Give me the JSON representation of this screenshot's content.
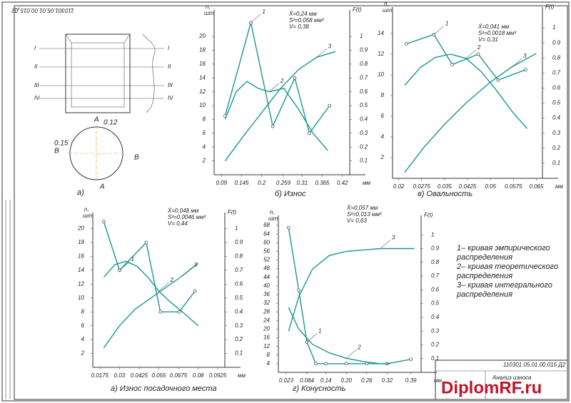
{
  "chart_data": [
    {
      "type": "line",
      "title": "б) Износ",
      "ylabel": "n,",
      "ylabel_unit": "шт",
      "y2label": "F(t)",
      "xlabel": "мм",
      "annotations": [
        "X̄=0,24 мм",
        "S²=0,058 мм²",
        "V= 0,38"
      ],
      "xlim": [
        0.07,
        0.44
      ],
      "xticks": [
        0.09,
        0.145,
        0.2,
        0.259,
        0.31,
        0.365,
        0.42
      ],
      "ylim": [
        0,
        23
      ],
      "yticks": [
        2,
        4,
        6,
        8,
        10,
        12,
        14,
        16,
        18,
        20
      ],
      "y2lim": [
        0,
        1.15
      ],
      "y2ticks": [
        0.1,
        0.2,
        0.3,
        0.4,
        0.5,
        0.6,
        0.7,
        0.8,
        0.9,
        1
      ],
      "series": [
        {
          "name": "1",
          "color": "#1a9696",
          "markers": true,
          "x": [
            0.1,
            0.17,
            0.23,
            0.29,
            0.33,
            0.385
          ],
          "values": [
            8.5,
            22,
            7,
            14,
            6,
            10
          ]
        },
        {
          "name": "2",
          "color": "#1a9696",
          "x": [
            0.1,
            0.13,
            0.16,
            0.19,
            0.22,
            0.26,
            0.3,
            0.34,
            0.38
          ],
          "values": [
            8,
            12,
            13.5,
            12.5,
            12,
            12.5,
            9.5,
            6,
            3.5
          ]
        },
        {
          "name": "3",
          "color": "#1a9696",
          "axis": "y2",
          "x": [
            0.1,
            0.15,
            0.2,
            0.25,
            0.3,
            0.35,
            0.4
          ],
          "values": [
            0.1,
            0.28,
            0.45,
            0.62,
            0.76,
            0.85,
            0.89
          ]
        }
      ]
    },
    {
      "type": "line",
      "title": "в) Овальность",
      "ylabel": "n,",
      "ylabel_unit": "шт",
      "y2label": "F(t)",
      "xlabel": "мм",
      "annotations": [
        "X̄=0,041 мм",
        "S²=0,0018 мм²",
        "V= 0,31"
      ],
      "xlim": [
        0.018,
        0.067
      ],
      "xticks": [
        0.02,
        0.0275,
        0.035,
        0.0425,
        0.05,
        0.0575,
        0.065
      ],
      "ylim": [
        0,
        16
      ],
      "yticks": [
        2,
        4,
        6,
        8,
        10,
        12,
        14
      ],
      "y2lim": [
        0,
        1.1
      ],
      "y2ticks": [
        0.1,
        0.2,
        0.3,
        0.4,
        0.5,
        0.6,
        0.7,
        0.8,
        0.9,
        1
      ],
      "series": [
        {
          "name": "1",
          "color": "#1a9696",
          "markers": true,
          "x": [
            0.0225,
            0.0315,
            0.0375,
            0.046,
            0.0525,
            0.0615
          ],
          "values": [
            13,
            13.9,
            11,
            12,
            9.5,
            10.5
          ]
        },
        {
          "name": "2",
          "color": "#1a9696",
          "x": [
            0.022,
            0.027,
            0.032,
            0.037,
            0.042,
            0.047,
            0.052,
            0.057,
            0.062
          ],
          "values": [
            9,
            10.7,
            11.7,
            12,
            11.6,
            10.3,
            8.5,
            6.5,
            4.8
          ]
        },
        {
          "name": "3",
          "color": "#1a9696",
          "axis": "y2",
          "x": [
            0.022,
            0.028,
            0.035,
            0.042,
            0.05,
            0.057,
            0.065
          ],
          "values": [
            0.04,
            0.2,
            0.36,
            0.5,
            0.64,
            0.74,
            0.83
          ]
        }
      ]
    },
    {
      "type": "line",
      "title": "а) Износ посадочного места",
      "ylabel": "n,",
      "ylabel_unit": "шт",
      "y2label": "F(t)",
      "xlabel": "мм",
      "annotations": [
        "X̄=0,048 мм",
        "S²=0,0046 мм²",
        "V= 0,44"
      ],
      "xlim": [
        0.013,
        0.097
      ],
      "xticks": [
        0.0175,
        0.03,
        0.0425,
        0.055,
        0.0675,
        0.08,
        0.0925
      ],
      "ylim": [
        0,
        21.5
      ],
      "yticks": [
        2,
        4,
        6,
        8,
        10,
        12,
        14,
        16,
        18,
        20
      ],
      "y2lim": [
        0,
        1.075
      ],
      "y2ticks": [
        0.1,
        0.2,
        0.3,
        0.4,
        0.5,
        0.6,
        0.7,
        0.8,
        0.9,
        1
      ],
      "series": [
        {
          "name": "1",
          "color": "#1a9696",
          "markers": true,
          "x": [
            0.02,
            0.03,
            0.047,
            0.056,
            0.068,
            0.078
          ],
          "values": [
            21,
            14,
            18,
            8,
            8,
            11
          ]
        },
        {
          "name": "2",
          "color": "#1a9696",
          "x": [
            0.02,
            0.027,
            0.034,
            0.041,
            0.048,
            0.055,
            0.062,
            0.069,
            0.076,
            0.08
          ],
          "values": [
            13,
            14.8,
            15.3,
            14.6,
            13,
            11,
            9.5,
            8.2,
            6.8,
            6
          ]
        },
        {
          "name": "3",
          "color": "#1a9696",
          "axis": "y2",
          "x": [
            0.02,
            0.03,
            0.04,
            0.05,
            0.06,
            0.07,
            0.08
          ],
          "values": [
            0.14,
            0.3,
            0.42,
            0.5,
            0.58,
            0.66,
            0.75
          ]
        }
      ]
    },
    {
      "type": "line",
      "title": "г) Конусность",
      "ylabel": "n,",
      "ylabel_unit": "шт",
      "y2label": "F(t)",
      "xlabel": "мм",
      "annotations": [
        "X̄=0,057 мм",
        "S²=0,013 мм²",
        "V= 0,63"
      ],
      "xlim": [
        0,
        0.42
      ],
      "xticks": [
        0.023,
        0.084,
        0.14,
        {
          "value": 0.2,
          "label": "0.20"
        },
        0.26,
        0.32,
        0.39
      ],
      "ylim": [
        0,
        70
      ],
      "yticks": [
        4,
        8,
        12,
        16,
        20,
        24,
        28,
        32,
        36,
        40,
        44,
        48,
        52,
        56,
        60,
        64,
        68
      ],
      "y2lim": [
        0,
        1.1
      ],
      "y2ticks": [
        0.1,
        0.2,
        0.3,
        0.4,
        0.5,
        0.6,
        0.7,
        0.8,
        0.9,
        1
      ],
      "series": [
        {
          "name": "1",
          "color": "#1a9696",
          "markers": true,
          "x": [
            0.03,
            0.06,
            0.084,
            0.11,
            0.14,
            0.2,
            0.26,
            0.32,
            0.39
          ],
          "values": [
            67,
            38,
            14,
            4,
            4,
            4,
            4,
            4,
            6
          ]
        },
        {
          "name": "2",
          "color": "#1a9696",
          "x": [
            0.03,
            0.06,
            0.1,
            0.15,
            0.2,
            0.25,
            0.3,
            0.33
          ],
          "values": [
            30,
            20,
            13,
            9,
            6.5,
            5,
            4,
            4
          ]
        },
        {
          "name": "3",
          "color": "#1a9696",
          "axis": "y2",
          "x": [
            0.03,
            0.06,
            0.1,
            0.15,
            0.2,
            0.3,
            0.4
          ],
          "values": [
            0.3,
            0.55,
            0.75,
            0.85,
            0.88,
            0.9,
            0.9
          ]
        }
      ]
    }
  ],
  "legend_notes": [
    "1– кривая эмпирического",
    "распределения",
    "2– кривая теоретического",
    "распределения",
    "3– кривая интегрального",
    "распределения"
  ],
  "part_drawing": {
    "sections": [
      "I",
      "II",
      "III",
      "IV"
    ],
    "top_label": "A",
    "bottom_label": "A",
    "left_label": "B",
    "right_label": "B",
    "tolerance_top": "0.12",
    "tolerance_left": "0.15",
    "caption": "а)"
  },
  "stamp": {
    "code": "110301.05.01.00.015 Д2",
    "title": "Анализ износа"
  },
  "corner_code": "110301.05.01.00.015 Д2",
  "watermark": "DiplomRF.ru"
}
